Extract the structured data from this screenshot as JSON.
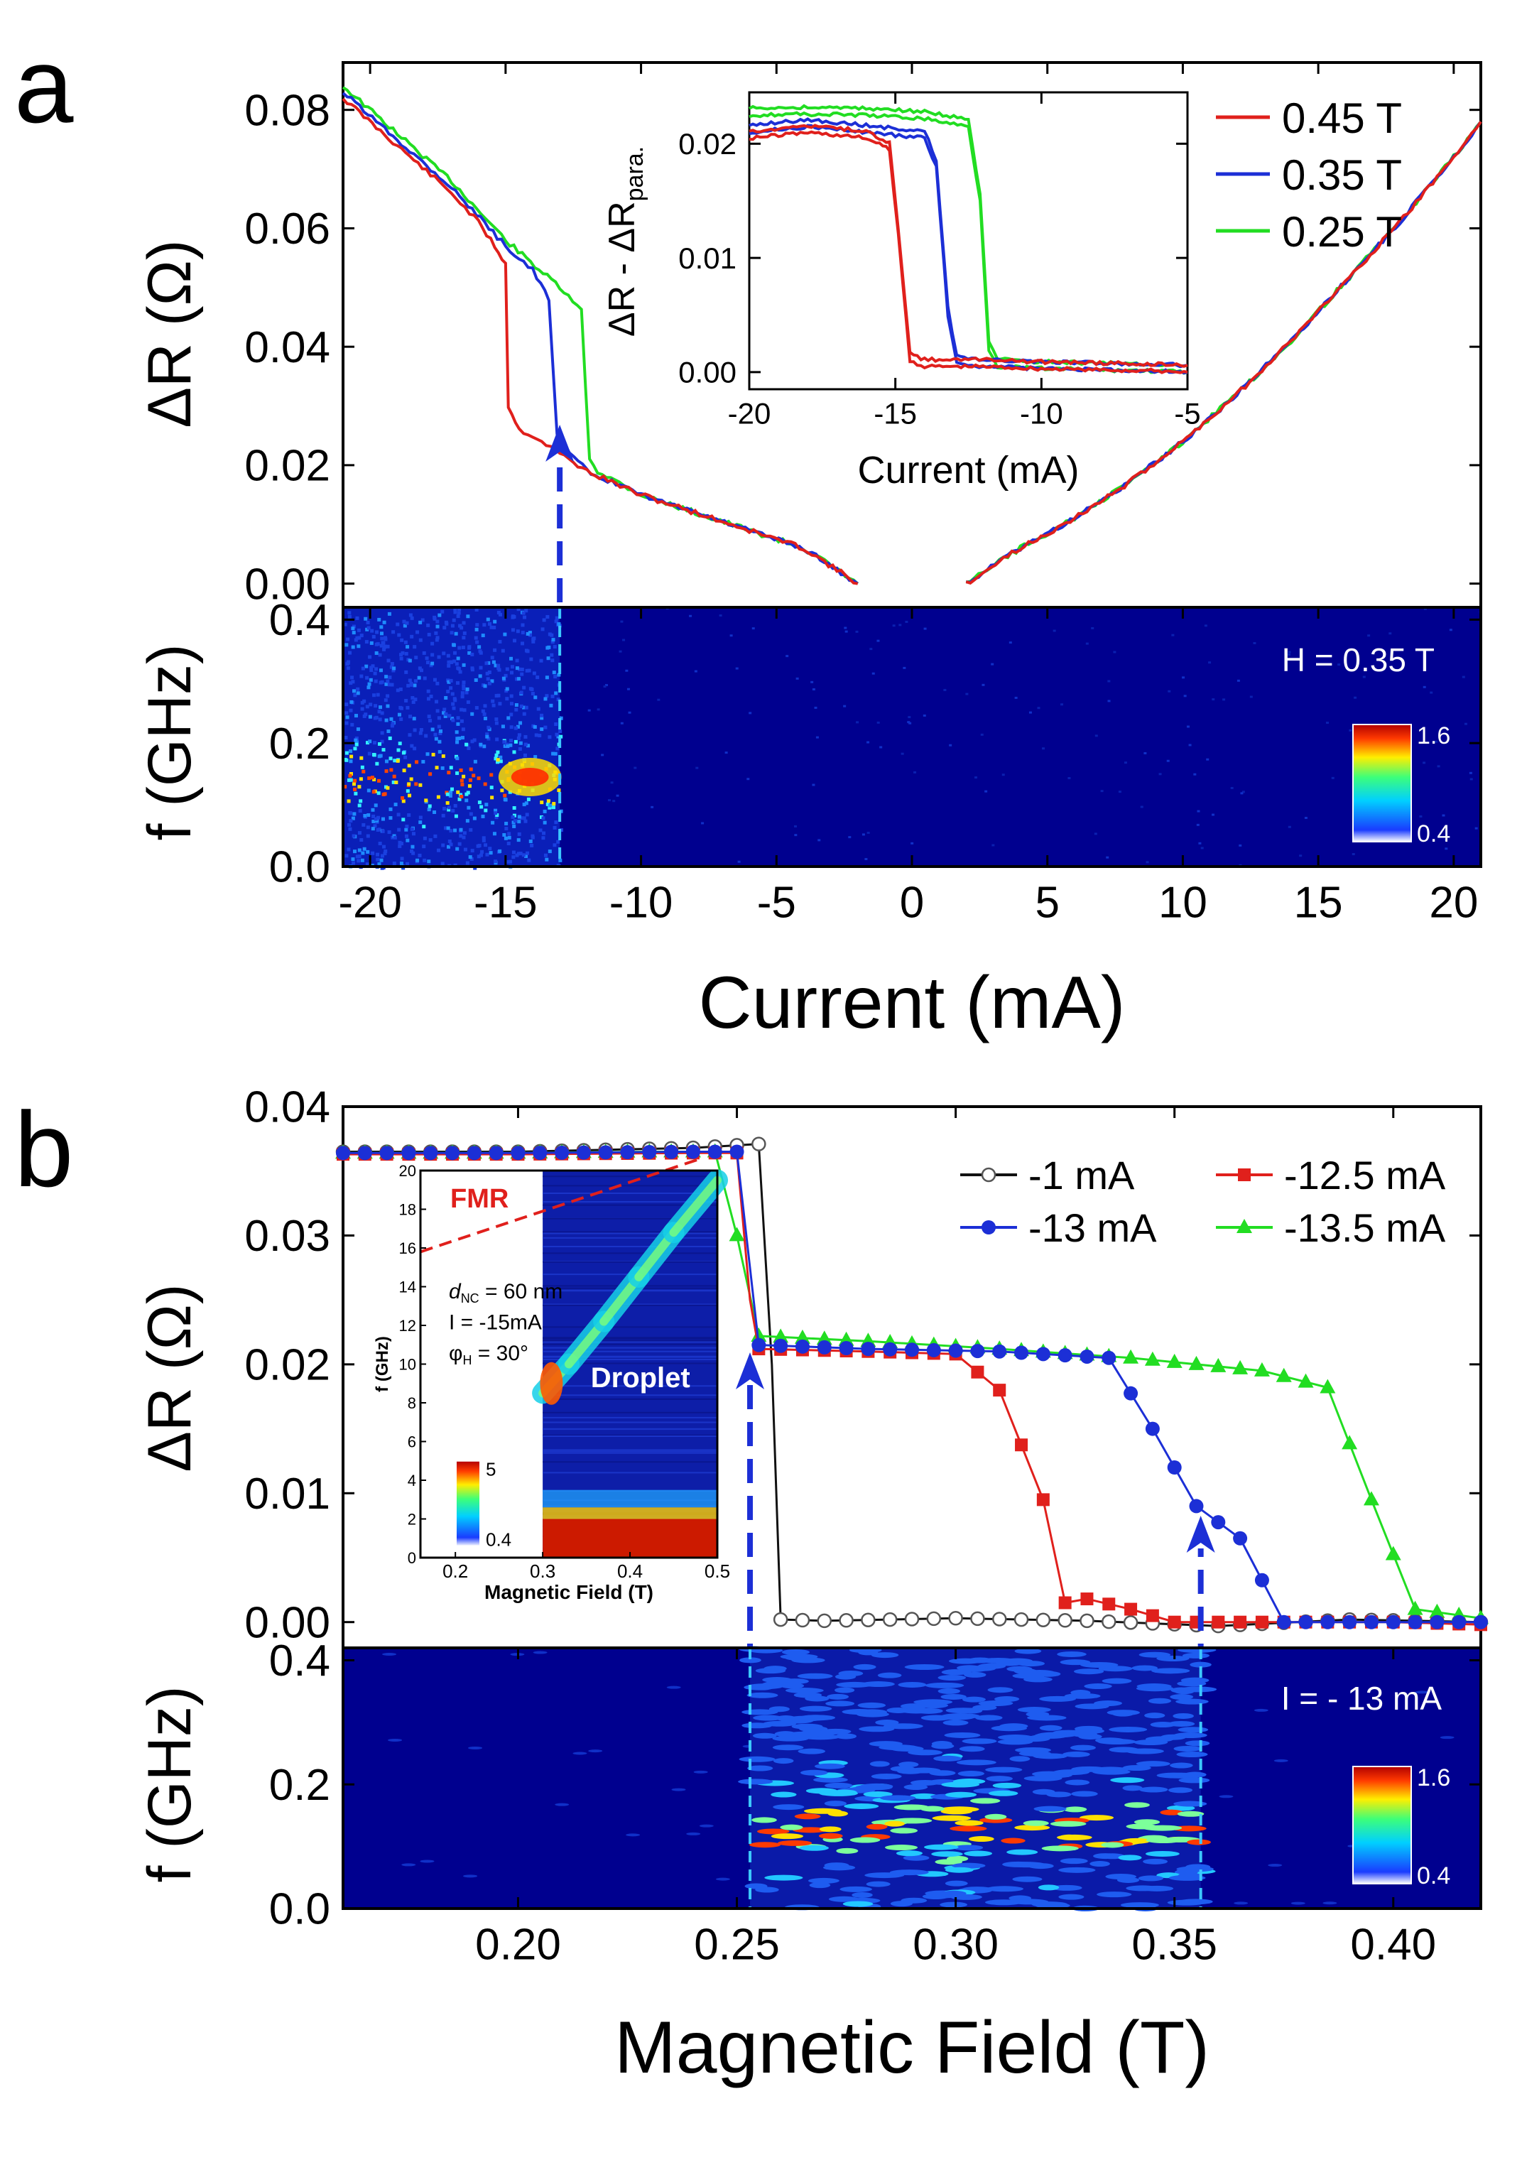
{
  "panels": {
    "a": "a",
    "b": "b"
  },
  "chart_data": [
    {
      "id": "a-top",
      "type": "line",
      "xlabel": "",
      "ylabel": "ΔR (Ω)",
      "xlim": [
        -21,
        21
      ],
      "ylim": [
        -0.004,
        0.088
      ],
      "yticks": [
        "0.00",
        "0.02",
        "0.04",
        "0.06",
        "0.08"
      ],
      "colors": {
        "0.45 T": "#e0201c",
        "0.35 T": "#1c2fd6",
        "0.25 T": "#22dd22"
      },
      "series": [
        {
          "name": "0.45 T",
          "x": [
            -21,
            -19,
            -17,
            -16,
            -15.4,
            -15.0,
            -14.9,
            -14.5,
            -14.0,
            -13.0,
            -12.0,
            -10,
            -8,
            -6,
            -4,
            -2,
            2,
            4,
            6,
            8,
            10,
            12,
            14,
            16,
            18,
            20,
            21
          ],
          "y": [
            0.082,
            0.074,
            0.066,
            0.061,
            0.057,
            0.054,
            0.03,
            0.026,
            0.025,
            0.022,
            0.019,
            0.015,
            0.012,
            0.009,
            0.006,
            0.0,
            0.0,
            0.006,
            0.011,
            0.017,
            0.024,
            0.032,
            0.041,
            0.051,
            0.061,
            0.072,
            0.078
          ]
        },
        {
          "name": "0.35 T",
          "x": [
            -21,
            -19,
            -17,
            -15,
            -14,
            -13.4,
            -13.1,
            -12.8,
            -12.0,
            -10,
            -8,
            -6,
            -4,
            -2,
            2,
            4,
            6,
            8,
            10,
            12,
            14,
            16,
            18,
            20,
            21
          ],
          "y": [
            0.083,
            0.075,
            0.067,
            0.057,
            0.053,
            0.048,
            0.025,
            0.023,
            0.019,
            0.015,
            0.012,
            0.009,
            0.006,
            0.0,
            0.0,
            0.006,
            0.011,
            0.017,
            0.024,
            0.032,
            0.041,
            0.051,
            0.061,
            0.072,
            0.078
          ]
        },
        {
          "name": "0.25 T",
          "x": [
            -21,
            -19,
            -17,
            -15,
            -13,
            -12.2,
            -11.9,
            -11.6,
            -10,
            -8,
            -6,
            -4,
            -2,
            2,
            4,
            6,
            8,
            10,
            12,
            14,
            16,
            18,
            20,
            21
          ],
          "y": [
            0.084,
            0.076,
            0.068,
            0.058,
            0.05,
            0.046,
            0.021,
            0.019,
            0.015,
            0.012,
            0.009,
            0.006,
            0.0,
            0.0,
            0.006,
            0.011,
            0.017,
            0.024,
            0.032,
            0.041,
            0.051,
            0.061,
            0.072,
            0.078
          ]
        }
      ],
      "inset": {
        "xlabel": "Current (mA)",
        "ylabel": "ΔR - ΔR",
        "ylabel_sub": "para.",
        "xlim": [
          -20,
          -5
        ],
        "ylim": [
          -0.0015,
          0.0245
        ],
        "xticks": [
          "-20",
          "-15",
          "-10",
          "-5"
        ],
        "yticks": [
          "0.00",
          "0.01",
          "0.02"
        ],
        "series": [
          {
            "name": "0.45 T",
            "x": [
              -20,
              -18,
              -16,
              -15.2,
              -14.9,
              -14.5,
              -14,
              -12,
              -10,
              -8,
              -6,
              -5
            ],
            "y": [
              0.0205,
              0.021,
              0.0205,
              0.0195,
              0.012,
              0.001,
              0.0005,
              0.0005,
              0.0003,
              0.0002,
              0.0001,
              0.0
            ]
          },
          {
            "name": "0.35 T",
            "x": [
              -20,
              -18,
              -16,
              -14,
              -13.6,
              -13.2,
              -12.9,
              -12,
              -10,
              -8,
              -6,
              -5
            ],
            "y": [
              0.021,
              0.0215,
              0.021,
              0.0205,
              0.018,
              0.005,
              0.0008,
              0.0005,
              0.0003,
              0.0002,
              0.0001,
              0.0
            ]
          },
          {
            "name": "0.25 T",
            "x": [
              -20,
              -18,
              -16,
              -14,
              -12.5,
              -12.1,
              -11.8,
              -11.5,
              -10,
              -8,
              -6,
              -5
            ],
            "y": [
              0.0225,
              0.0226,
              0.0225,
              0.0222,
              0.0215,
              0.015,
              0.002,
              0.0005,
              0.0003,
              0.0002,
              0.0001,
              0.0
            ]
          }
        ]
      }
    },
    {
      "id": "a-bottom",
      "type": "heatmap",
      "xlabel": "Current (mA)",
      "ylabel": "f (GHz)",
      "xlim": [
        -21,
        21
      ],
      "ylim": [
        0,
        0.42
      ],
      "xticks": [
        "-20",
        "-15",
        "-10",
        "-5",
        "0",
        "5",
        "10",
        "15",
        "20"
      ],
      "yticks": [
        "0.0",
        "0.2",
        "0.4"
      ],
      "annotation": "H = 0.35 T",
      "colorbar": {
        "min": "0.4",
        "max": "1.6"
      },
      "active_range": [
        -21,
        -13.0
      ],
      "peak_region": {
        "x": [
          -15,
          -13.2
        ],
        "f": [
          0.13,
          0.16
        ]
      }
    },
    {
      "id": "b-top",
      "type": "line",
      "xlabel": "",
      "ylabel": "ΔR (Ω)",
      "xlim": [
        0.16,
        0.42
      ],
      "ylim": [
        -0.002,
        0.04
      ],
      "yticks": [
        "0.00",
        "0.01",
        "0.02",
        "0.03",
        "0.04"
      ],
      "colors": {
        "-1 mA": "#111111",
        "-12.5 mA": "#e0201c",
        "-13 mA": "#1c2fd6",
        "-13.5 mA": "#22dd22"
      },
      "series": [
        {
          "name": "-1 mA",
          "x": [
            0.16,
            0.2,
            0.24,
            0.255,
            0.258,
            0.26,
            0.27,
            0.3,
            0.33,
            0.36,
            0.39,
            0.42
          ],
          "y": [
            0.0365,
            0.0365,
            0.0368,
            0.0371,
            0.02,
            0.0002,
            0.0001,
            0.0003,
            0.0001,
            -0.0003,
            0.0002,
            0.0
          ]
        },
        {
          "name": "-12.5 mA",
          "x": [
            0.16,
            0.2,
            0.24,
            0.25,
            0.253,
            0.255,
            0.28,
            0.3,
            0.31,
            0.32,
            0.325,
            0.33,
            0.34,
            0.35,
            0.37,
            0.4,
            0.42
          ],
          "y": [
            0.0363,
            0.0363,
            0.0364,
            0.0364,
            0.025,
            0.0212,
            0.021,
            0.0208,
            0.018,
            0.0095,
            0.0015,
            0.0018,
            0.001,
            0.0,
            0.0,
            0.0,
            -0.0002
          ]
        },
        {
          "name": "-13 mA",
          "x": [
            0.16,
            0.2,
            0.24,
            0.25,
            0.255,
            0.28,
            0.31,
            0.335,
            0.345,
            0.355,
            0.365,
            0.375,
            0.39,
            0.42
          ],
          "y": [
            0.0364,
            0.0364,
            0.0365,
            0.0365,
            0.0215,
            0.0212,
            0.021,
            0.0205,
            0.015,
            0.009,
            0.0065,
            0.0,
            0.0,
            0.0
          ]
        },
        {
          "name": "-13.5 mA",
          "x": [
            0.16,
            0.2,
            0.23,
            0.245,
            0.25,
            0.255,
            0.28,
            0.31,
            0.34,
            0.37,
            0.385,
            0.395,
            0.405,
            0.42
          ],
          "y": [
            0.0364,
            0.0364,
            0.0365,
            0.0365,
            0.03,
            0.0222,
            0.0218,
            0.0212,
            0.0205,
            0.0195,
            0.0182,
            0.0095,
            0.001,
            0.0003
          ]
        }
      ],
      "inset": {
        "xlabel": "Magnetic Field (T)",
        "ylabel": "f (GHz)",
        "xlim": [
          0.16,
          0.5
        ],
        "ylim": [
          0,
          20
        ],
        "xticks": [
          "0.2",
          "0.3",
          "0.4",
          "0.5"
        ],
        "yticks": [
          "0",
          "2",
          "4",
          "6",
          "8",
          "10",
          "12",
          "14",
          "16",
          "18",
          "20"
        ],
        "labels": {
          "fmr": "FMR",
          "droplet": "Droplet",
          "dnc": "d",
          "dnc_sub": "NC",
          "dnc_val": " = 60 nm",
          "current": "I = -15mA",
          "phi": "φ",
          "phi_sub": "H",
          "phi_val": " = 30°"
        },
        "colorbar": {
          "min": "0.4",
          "max": "5"
        }
      }
    },
    {
      "id": "b-bottom",
      "type": "heatmap",
      "xlabel": "Magnetic Field (T)",
      "ylabel": "f (GHz)",
      "xlim": [
        0.16,
        0.42
      ],
      "ylim": [
        0,
        0.42
      ],
      "xticks": [
        "0.20",
        "0.25",
        "0.30",
        "0.35",
        "0.40"
      ],
      "yticks": [
        "0.0",
        "0.2",
        "0.4"
      ],
      "annotation": "I = - 13 mA",
      "colorbar": {
        "min": "0.4",
        "max": "1.6"
      },
      "active_range": [
        0.253,
        0.356
      ],
      "peak_band": [
        0.1,
        0.16
      ]
    }
  ]
}
